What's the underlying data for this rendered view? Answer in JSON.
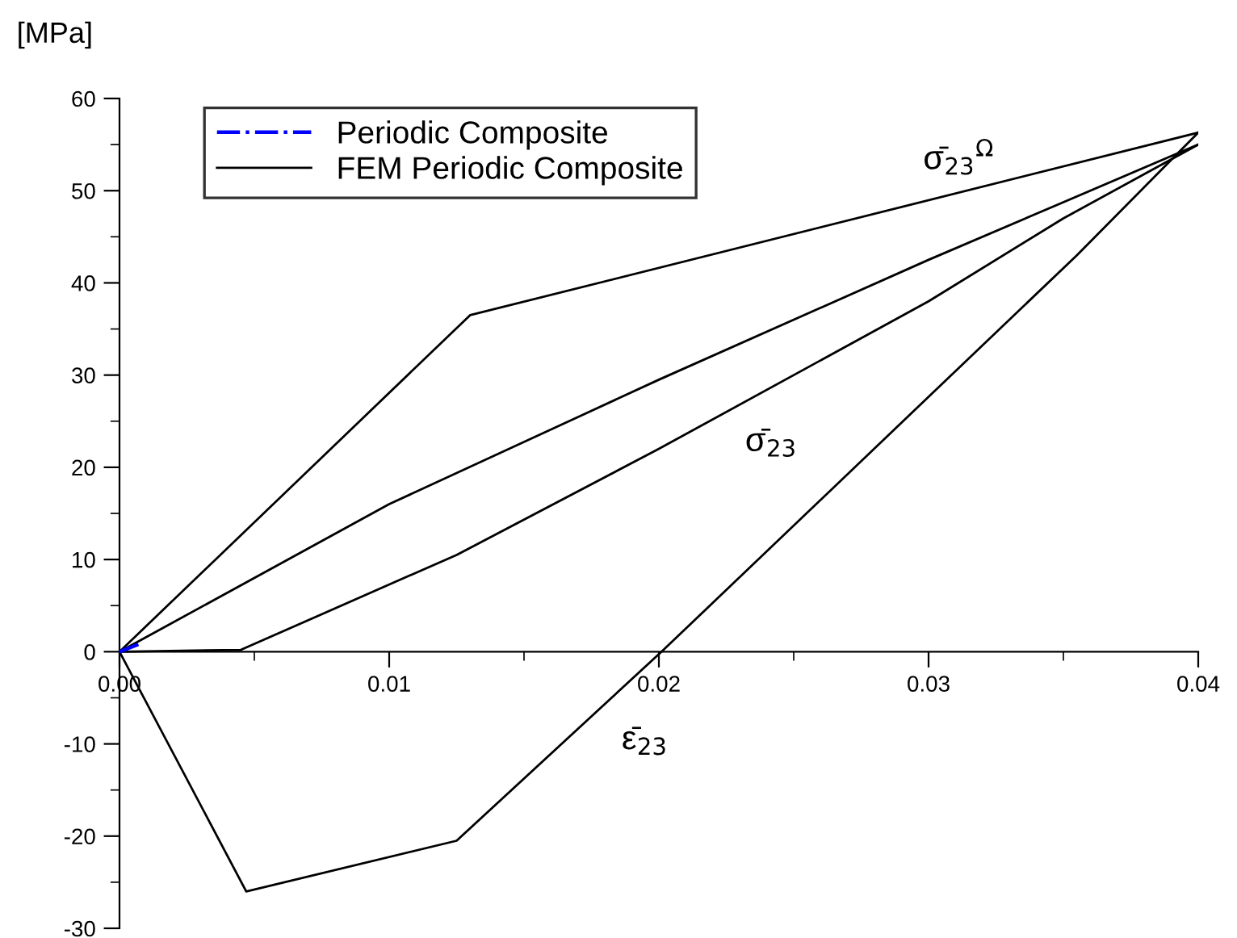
{
  "chart_data": {
    "type": "line",
    "ylabel": "[MPa]",
    "xlabel": "ε̄$_{23}$",
    "series": [
      {
        "name": "Periodic Composite",
        "color": "#0000ff",
        "line_style": "dashdot",
        "x": [
          0,
          0.0007
        ],
        "values": [
          0,
          0.8
        ]
      },
      {
        "name": "FEM Periodic Composite",
        "color": "#000000",
        "line_style": "solid",
        "x": [
          0,
          0.013,
          0.04
        ],
        "values": [
          0,
          36.5,
          56.3
        ]
      },
      {
        "color": "#000000",
        "line_style": "solid",
        "x": [
          0,
          0.0047,
          0.0125,
          0.0201,
          0.0355,
          0.04
        ],
        "values": [
          0,
          -26,
          -20.5,
          0,
          43,
          56.3
        ]
      },
      {
        "color": "#000000",
        "line_style": "solid",
        "x": [
          0,
          0.01,
          0.02,
          0.03,
          0.04
        ],
        "values": [
          0,
          16,
          29.5,
          42.5,
          55
        ]
      },
      {
        "color": "#000000",
        "line_style": "solid",
        "x": [
          0,
          0.0045,
          0.0125,
          0.02,
          0.03,
          0.035,
          0.04
        ],
        "values": [
          0,
          0.2,
          10.5,
          22,
          38,
          47,
          55
        ]
      }
    ],
    "annotations": [
      "σ̄$_{23}$$^{Ω}$",
      "σ̄$_{23}$"
    ],
    "xlim": [
      0,
      0.04
    ],
    "ylim": [
      -30,
      60
    ],
    "xticks": [
      {
        "value": 0,
        "label": "0.00"
      },
      0.01,
      0.02,
      0.03,
      0.04
    ],
    "yticks": [
      -30,
      -20,
      -10,
      0,
      10,
      20,
      30,
      40,
      50,
      60
    ],
    "grid": false,
    "legend": "top left",
    "marker": "none"
  }
}
